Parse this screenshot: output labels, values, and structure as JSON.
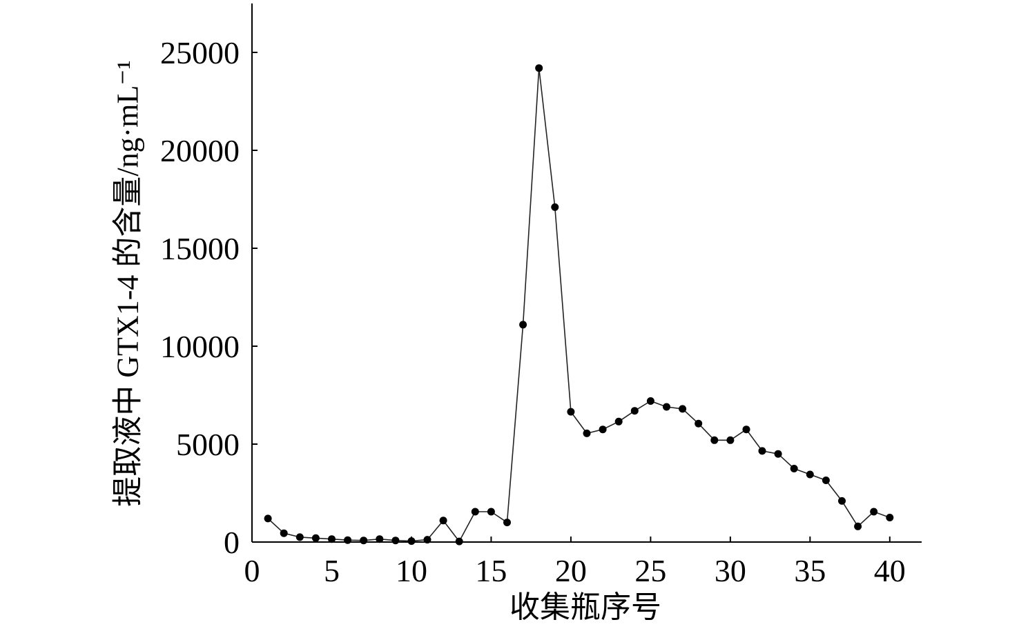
{
  "chart_data": {
    "type": "line",
    "xlabel": "收集瓶序号",
    "ylabel": "提取液中 GTX1-4 的含量/ng·mL⁻¹",
    "xlim": [
      0,
      42
    ],
    "ylim": [
      0,
      27500
    ],
    "xticks": [
      0,
      5,
      10,
      15,
      20,
      25,
      30,
      35,
      40
    ],
    "yticks": [
      0,
      5000,
      10000,
      15000,
      20000,
      25000
    ],
    "grid": false,
    "legend": "none",
    "series": [
      {
        "marker": "circle",
        "line_color": "#222222",
        "marker_color": "#000000",
        "x": [
          1,
          2,
          3,
          4,
          5,
          6,
          7,
          8,
          9,
          10,
          11,
          12,
          13,
          14,
          15,
          16,
          17,
          18,
          19,
          20,
          21,
          22,
          23,
          24,
          25,
          26,
          27,
          28,
          29,
          30,
          31,
          32,
          33,
          34,
          35,
          36,
          37,
          38,
          39,
          40
        ],
        "y": [
          1200,
          450,
          250,
          200,
          150,
          100,
          80,
          150,
          80,
          50,
          120,
          1100,
          30,
          1550,
          1550,
          1000,
          11100,
          24200,
          17100,
          6650,
          5550,
          5750,
          6150,
          6700,
          7200,
          6900,
          6800,
          6050,
          5200,
          5200,
          5750,
          4650,
          4500,
          3750,
          3450,
          3150,
          2100,
          800,
          1550,
          1250
        ]
      }
    ]
  }
}
